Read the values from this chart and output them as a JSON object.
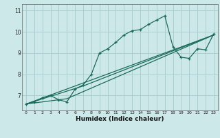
{
  "xlabel": "Humidex (Indice chaleur)",
  "bg_color": "#cce8e8",
  "grid_color": "#aacece",
  "line_color": "#1a6b5a",
  "xlim": [
    -0.5,
    23.5
  ],
  "ylim": [
    6.3,
    11.3
  ],
  "xticks": [
    0,
    1,
    2,
    3,
    4,
    5,
    6,
    7,
    8,
    9,
    10,
    11,
    12,
    13,
    14,
    15,
    16,
    17,
    18,
    19,
    20,
    21,
    22,
    23
  ],
  "yticks": [
    7,
    8,
    9,
    10,
    11
  ],
  "ytick_labels": [
    "7",
    "8",
    "9",
    "10",
    "11"
  ],
  "line1_x": [
    0,
    1,
    2,
    3,
    4,
    5,
    6,
    7,
    8,
    9,
    10,
    11,
    12,
    13,
    14,
    15,
    16,
    17,
    18,
    19,
    20,
    21,
    22,
    23
  ],
  "line1_y": [
    6.6,
    6.7,
    6.9,
    7.0,
    6.8,
    6.7,
    7.3,
    7.5,
    8.0,
    9.0,
    9.2,
    9.5,
    9.85,
    10.05,
    10.1,
    10.35,
    10.55,
    10.75,
    9.3,
    8.8,
    8.75,
    9.2,
    9.15,
    9.9
  ],
  "line2_x": [
    0,
    5,
    23
  ],
  "line2_y": [
    6.6,
    6.85,
    9.85
  ],
  "line3_x": [
    0,
    7,
    23
  ],
  "line3_y": [
    6.6,
    7.45,
    9.85
  ],
  "line4_x": [
    0,
    23
  ],
  "line4_y": [
    6.6,
    9.85
  ]
}
